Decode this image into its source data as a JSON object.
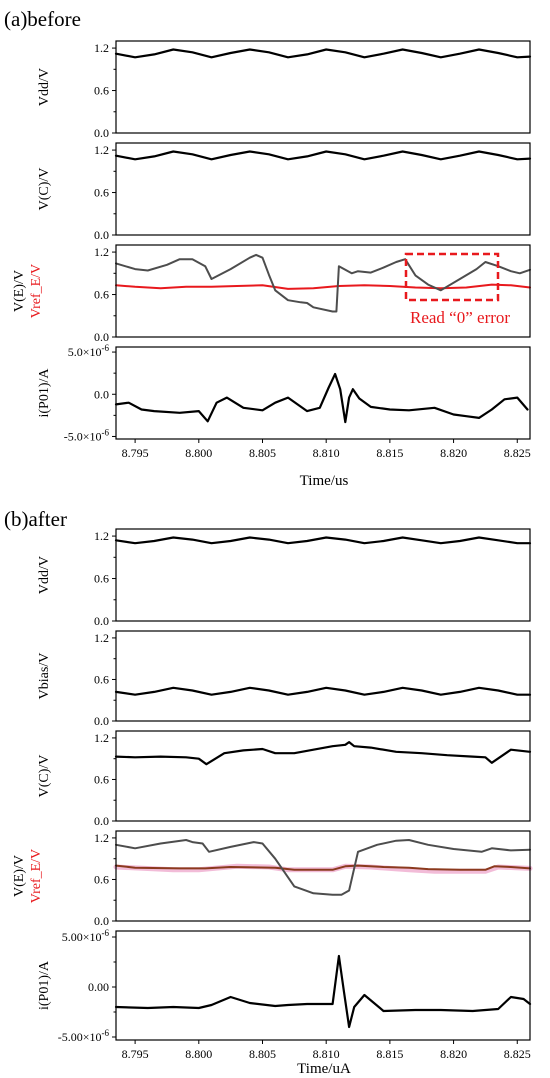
{
  "figure": {
    "sections": [
      {
        "id": "a",
        "label": "(a)before",
        "xlabel": "Time/us"
      },
      {
        "id": "b",
        "label": "(b)after",
        "xlabel": "Time/uA"
      }
    ],
    "annotation": {
      "text": "Read “0” error",
      "color": "#e8191d"
    }
  },
  "chart_data": [
    {
      "type": "line",
      "section": "a",
      "panel": 0,
      "ylabel": "Vdd/V",
      "xlim": [
        8.7935,
        8.826
      ],
      "ylim": [
        0.0,
        1.3
      ],
      "yticks": [
        0.0,
        0.6,
        1.2
      ],
      "ytick_labels": [
        "0.0",
        "0.6",
        "1.2"
      ],
      "series": [
        {
          "color": "#000000",
          "width": 2.2,
          "x": [
            8.7935,
            8.795,
            8.7965,
            8.798,
            8.7995,
            8.801,
            8.8025,
            8.804,
            8.8055,
            8.807,
            8.8085,
            8.81,
            8.8115,
            8.813,
            8.8145,
            8.816,
            8.8175,
            8.819,
            8.8205,
            8.822,
            8.8235,
            8.825,
            8.826
          ],
          "y": [
            1.12,
            1.07,
            1.11,
            1.18,
            1.14,
            1.07,
            1.13,
            1.18,
            1.14,
            1.07,
            1.11,
            1.18,
            1.14,
            1.07,
            1.12,
            1.18,
            1.13,
            1.07,
            1.12,
            1.18,
            1.13,
            1.07,
            1.08
          ]
        }
      ]
    },
    {
      "type": "line",
      "section": "a",
      "panel": 1,
      "ylabel": "V(C)/V",
      "xlim": [
        8.7935,
        8.826
      ],
      "ylim": [
        0.0,
        1.3
      ],
      "yticks": [
        0.0,
        0.6,
        1.2
      ],
      "ytick_labels": [
        "0.0",
        "0.6",
        "1.2"
      ],
      "series": [
        {
          "color": "#000000",
          "width": 2.2,
          "x": [
            8.7935,
            8.795,
            8.7965,
            8.798,
            8.7995,
            8.801,
            8.8025,
            8.804,
            8.8055,
            8.807,
            8.8085,
            8.81,
            8.8115,
            8.813,
            8.8145,
            8.816,
            8.8175,
            8.819,
            8.8205,
            8.822,
            8.8235,
            8.825,
            8.826
          ],
          "y": [
            1.12,
            1.07,
            1.11,
            1.18,
            1.14,
            1.07,
            1.13,
            1.18,
            1.14,
            1.07,
            1.11,
            1.18,
            1.14,
            1.07,
            1.12,
            1.18,
            1.13,
            1.07,
            1.12,
            1.18,
            1.13,
            1.07,
            1.08
          ]
        }
      ]
    },
    {
      "type": "line",
      "section": "a",
      "panel": 2,
      "ylabel": "V(E)/V",
      "ylabel2": "Vref_E/V",
      "ylabel2_color": "#e8191d",
      "xlim": [
        8.7935,
        8.826
      ],
      "ylim": [
        0.0,
        1.3
      ],
      "yticks": [
        0.0,
        0.6,
        1.2
      ],
      "ytick_labels": [
        "0.0",
        "0.6",
        "1.2"
      ],
      "series": [
        {
          "color": "#e8191d",
          "width": 2.0,
          "x": [
            8.7935,
            8.795,
            8.797,
            8.799,
            8.801,
            8.803,
            8.805,
            8.807,
            8.809,
            8.811,
            8.813,
            8.815,
            8.817,
            8.819,
            8.821,
            8.823,
            8.8245,
            8.826
          ],
          "y": [
            0.73,
            0.71,
            0.69,
            0.71,
            0.71,
            0.72,
            0.73,
            0.68,
            0.69,
            0.72,
            0.73,
            0.72,
            0.7,
            0.69,
            0.7,
            0.74,
            0.73,
            0.7
          ]
        },
        {
          "color": "#4d4d4d",
          "width": 2.0,
          "x": [
            8.7935,
            8.795,
            8.796,
            8.7975,
            8.7985,
            8.7995,
            8.8005,
            8.801,
            8.8025,
            8.804,
            8.8045,
            8.805,
            8.8055,
            8.806,
            8.807,
            8.808,
            8.8085,
            8.809,
            8.8105,
            8.8108,
            8.811,
            8.812,
            8.8125,
            8.8135,
            8.8145,
            8.8155,
            8.8162,
            8.817,
            8.818,
            8.819,
            8.8205,
            8.8218,
            8.8225,
            8.8235,
            8.8245,
            8.8252,
            8.826
          ],
          "y": [
            1.04,
            0.96,
            0.94,
            1.02,
            1.1,
            1.1,
            1.0,
            0.82,
            0.96,
            1.12,
            1.16,
            1.12,
            0.88,
            0.66,
            0.52,
            0.49,
            0.48,
            0.42,
            0.36,
            0.36,
            1.0,
            0.9,
            0.93,
            0.91,
            0.98,
            1.06,
            1.1,
            0.87,
            0.74,
            0.66,
            0.82,
            0.96,
            1.06,
            1.0,
            0.93,
            0.9,
            0.95
          ]
        }
      ]
    },
    {
      "type": "line",
      "section": "a",
      "panel": 3,
      "ylabel": "i(P01)/A",
      "xlim": [
        8.7935,
        8.826
      ],
      "ylim": [
        -5.3e-06,
        5.6e-06
      ],
      "yticks": [
        -5e-06,
        0.0,
        5e-06
      ],
      "ytick_labels": [
        "-5.0×10⁻⁶",
        "0.0",
        "5.0×10⁻⁶"
      ],
      "xticks": [
        8.795,
        8.8,
        8.805,
        8.81,
        8.815,
        8.82,
        8.825
      ],
      "xtick_labels": [
        "8.795",
        "8.800",
        "8.805",
        "8.810",
        "8.815",
        "8.820",
        "8.825"
      ],
      "series": [
        {
          "color": "#000000",
          "width": 2.2,
          "x": [
            8.7935,
            8.7945,
            8.7955,
            8.7965,
            8.7985,
            8.8,
            8.8007,
            8.8014,
            8.8022,
            8.8035,
            8.805,
            8.806,
            8.807,
            8.8085,
            8.8095,
            8.8102,
            8.8107,
            8.8111,
            8.8115,
            8.8118,
            8.8121,
            8.8126,
            8.8135,
            8.815,
            8.8165,
            8.8185,
            8.82,
            8.821,
            8.822,
            8.823,
            8.824,
            8.825,
            8.8258
          ],
          "y": [
            -1.2e-06,
            -1e-06,
            -1.8e-06,
            -2e-06,
            -2.2e-06,
            -2e-06,
            -3.2e-06,
            -1e-06,
            -4e-07,
            -1.6e-06,
            -1.9e-06,
            -1e-06,
            -4e-07,
            -2e-06,
            -1.6e-06,
            8e-07,
            2.4e-06,
            6e-07,
            -3.3e-06,
            -4e-07,
            6e-07,
            -5e-07,
            -1.5e-06,
            -1.8e-06,
            -1.9e-06,
            -1.6e-06,
            -2.4e-06,
            -2.6e-06,
            -2.8e-06,
            -1.8e-06,
            -6e-07,
            -4e-07,
            -1.8e-06
          ]
        }
      ]
    },
    {
      "type": "line",
      "section": "b",
      "panel": 0,
      "ylabel": "Vdd/V",
      "xlim": [
        8.7935,
        8.826
      ],
      "ylim": [
        0.0,
        1.3
      ],
      "yticks": [
        0.0,
        0.6,
        1.2
      ],
      "ytick_labels": [
        "0.0",
        "0.6",
        "1.2"
      ],
      "series": [
        {
          "color": "#000000",
          "width": 2.2,
          "x": [
            8.7935,
            8.795,
            8.7965,
            8.798,
            8.7995,
            8.801,
            8.8025,
            8.804,
            8.8055,
            8.807,
            8.8085,
            8.81,
            8.8115,
            8.813,
            8.8145,
            8.816,
            8.8175,
            8.819,
            8.8205,
            8.822,
            8.8235,
            8.825,
            8.826
          ],
          "y": [
            1.14,
            1.1,
            1.13,
            1.18,
            1.15,
            1.1,
            1.13,
            1.18,
            1.15,
            1.1,
            1.13,
            1.18,
            1.15,
            1.1,
            1.13,
            1.18,
            1.14,
            1.1,
            1.13,
            1.18,
            1.14,
            1.1,
            1.1
          ]
        }
      ]
    },
    {
      "type": "line",
      "section": "b",
      "panel": 1,
      "ylabel": "Vbias/V",
      "xlim": [
        8.7935,
        8.826
      ],
      "ylim": [
        0.0,
        1.3
      ],
      "yticks": [
        0.0,
        0.6,
        1.2
      ],
      "ytick_labels": [
        "0.0",
        "0.6",
        "1.2"
      ],
      "series": [
        {
          "color": "#000000",
          "width": 2.2,
          "x": [
            8.7935,
            8.795,
            8.7965,
            8.798,
            8.7995,
            8.801,
            8.8025,
            8.804,
            8.8055,
            8.807,
            8.8085,
            8.81,
            8.8115,
            8.813,
            8.8145,
            8.816,
            8.8175,
            8.819,
            8.8205,
            8.822,
            8.8235,
            8.825,
            8.826
          ],
          "y": [
            0.42,
            0.38,
            0.42,
            0.48,
            0.44,
            0.38,
            0.42,
            0.48,
            0.44,
            0.38,
            0.42,
            0.48,
            0.44,
            0.38,
            0.42,
            0.48,
            0.44,
            0.38,
            0.42,
            0.48,
            0.44,
            0.38,
            0.38
          ]
        }
      ]
    },
    {
      "type": "line",
      "section": "b",
      "panel": 2,
      "ylabel": "V(C)/V",
      "xlim": [
        8.7935,
        8.826
      ],
      "ylim": [
        0.0,
        1.3
      ],
      "yticks": [
        0.0,
        0.6,
        1.2
      ],
      "ytick_labels": [
        "0.0",
        "0.6",
        "1.2"
      ],
      "series": [
        {
          "color": "#000000",
          "width": 2.2,
          "x": [
            8.7935,
            8.795,
            8.797,
            8.799,
            8.8,
            8.8006,
            8.802,
            8.8035,
            8.805,
            8.806,
            8.8075,
            8.809,
            8.8105,
            8.8115,
            8.8118,
            8.8122,
            8.8135,
            8.8155,
            8.8175,
            8.8195,
            8.8215,
            8.8225,
            8.823,
            8.8245,
            8.826
          ],
          "y": [
            0.93,
            0.92,
            0.93,
            0.92,
            0.9,
            0.82,
            0.98,
            1.02,
            1.04,
            0.98,
            0.98,
            1.03,
            1.08,
            1.1,
            1.14,
            1.08,
            1.06,
            1.0,
            0.98,
            0.95,
            0.93,
            0.92,
            0.84,
            1.03,
            1.0
          ]
        }
      ]
    },
    {
      "type": "line",
      "section": "b",
      "panel": 3,
      "ylabel": "V(E)/V",
      "ylabel2": "Vref_E/V",
      "ylabel2_color": "#e8191d",
      "xlim": [
        8.7935,
        8.826
      ],
      "ylim": [
        0.0,
        1.3
      ],
      "yticks": [
        0.0,
        0.6,
        1.2
      ],
      "ytick_labels": [
        "0.0",
        "0.6",
        "1.2"
      ],
      "series": [
        {
          "color": "#f2bcd8",
          "width": 5.0,
          "x": [
            8.7935,
            8.798,
            8.8,
            8.803,
            8.8055,
            8.807,
            8.8105,
            8.8115,
            8.8135,
            8.8165,
            8.8185,
            8.8205,
            8.8225,
            8.8235,
            8.826
          ],
          "y": [
            0.78,
            0.74,
            0.74,
            0.79,
            0.78,
            0.74,
            0.74,
            0.79,
            0.78,
            0.74,
            0.72,
            0.72,
            0.72,
            0.78,
            0.76
          ]
        },
        {
          "color": "#8b3a1e",
          "width": 2.0,
          "x": [
            8.7935,
            8.795,
            8.7985,
            8.8005,
            8.8025,
            8.806,
            8.8075,
            8.8105,
            8.8115,
            8.8125,
            8.8145,
            8.8165,
            8.818,
            8.8205,
            8.8225,
            8.8232,
            8.8245,
            8.826
          ],
          "y": [
            0.8,
            0.77,
            0.76,
            0.76,
            0.78,
            0.77,
            0.74,
            0.74,
            0.79,
            0.8,
            0.78,
            0.77,
            0.75,
            0.74,
            0.74,
            0.79,
            0.78,
            0.76
          ]
        },
        {
          "color": "#4d4d4d",
          "width": 2.0,
          "x": [
            8.7935,
            8.795,
            8.797,
            8.799,
            8.7995,
            8.8003,
            8.8008,
            8.8025,
            8.8043,
            8.805,
            8.806,
            8.8075,
            8.809,
            8.8105,
            8.8112,
            8.8118,
            8.8125,
            8.814,
            8.8155,
            8.8165,
            8.818,
            8.82,
            8.8222,
            8.823,
            8.8245,
            8.826
          ],
          "y": [
            1.1,
            1.05,
            1.12,
            1.17,
            1.14,
            1.12,
            1.0,
            1.07,
            1.14,
            1.12,
            0.9,
            0.5,
            0.4,
            0.38,
            0.38,
            0.44,
            1.0,
            1.1,
            1.16,
            1.17,
            1.1,
            1.04,
            1.0,
            1.05,
            1.02,
            1.03
          ]
        }
      ]
    },
    {
      "type": "line",
      "section": "b",
      "panel": 4,
      "ylabel": "i(P01)/A",
      "xlim": [
        8.7935,
        8.826
      ],
      "ylim": [
        -5.3e-06,
        5.6e-06
      ],
      "yticks": [
        -5e-06,
        0.0,
        5e-06
      ],
      "ytick_labels": [
        "-5.00×10⁻⁶",
        "0.00",
        "5.00×10⁻⁶"
      ],
      "xticks": [
        8.795,
        8.8,
        8.805,
        8.81,
        8.815,
        8.82,
        8.825
      ],
      "xtick_labels": [
        "8.795",
        "8.800",
        "8.805",
        "8.810",
        "8.815",
        "8.820",
        "8.825"
      ],
      "series": [
        {
          "color": "#000000",
          "width": 2.2,
          "x": [
            8.7935,
            8.796,
            8.798,
            8.8,
            8.801,
            8.8025,
            8.804,
            8.806,
            8.807,
            8.8085,
            8.8105,
            8.811,
            8.8114,
            8.8118,
            8.8122,
            8.813,
            8.8145,
            8.817,
            8.819,
            8.8215,
            8.8235,
            8.8245,
            8.8255,
            8.826
          ],
          "y": [
            -2e-06,
            -2.1e-06,
            -2e-06,
            -2.1e-06,
            -1.8e-06,
            -1e-06,
            -1.6e-06,
            -1.9e-06,
            -1.8e-06,
            -1.7e-06,
            -1.7e-06,
            3.1e-06,
            -5e-07,
            -4e-06,
            -2e-06,
            -8e-07,
            -2.4e-06,
            -2.3e-06,
            -2.3e-06,
            -2.4e-06,
            -2.2e-06,
            -1e-06,
            -1.2e-06,
            -1.7e-06
          ]
        }
      ]
    }
  ]
}
